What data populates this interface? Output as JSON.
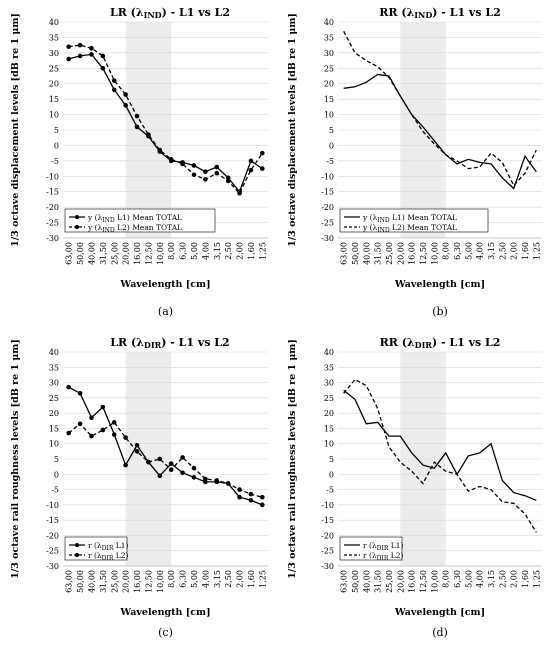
{
  "figure": {
    "captions": [
      "(a)",
      "(b)",
      "(c)",
      "(d)"
    ]
  },
  "chart_data": [
    {
      "type": "line",
      "title": {
        "pre": "LR (λ",
        "sub": "IND",
        "post": ") - L1 vs L2"
      },
      "xlabel": "Wavelength [cm]",
      "ylabel": "1/3 octave displacement levels [dB re 1 μm]",
      "categories": [
        "63,00",
        "50,00",
        "40,00",
        "31,50",
        "25,00",
        "20,00",
        "16,00",
        "12,50",
        "10,00",
        "8,00",
        "6,30",
        "5,00",
        "4,00",
        "3,15",
        "2,50",
        "2,00",
        "1,60",
        "1,25"
      ],
      "ylim": [
        -30,
        40
      ],
      "yticks": [
        40,
        35,
        30,
        25,
        20,
        15,
        10,
        5,
        0,
        -5,
        -10,
        -15,
        -20,
        -25,
        -30
      ],
      "shade": [
        "20,00",
        "8,00"
      ],
      "markers": true,
      "legend_position": "bottom-left",
      "series": [
        {
          "legend": {
            "pre": "y (λ",
            "sub": "IND",
            "post": " L1) Mean TOTAL"
          },
          "dash": false,
          "values": [
            28,
            29,
            29.5,
            25,
            18,
            13,
            6,
            3,
            -2,
            -5,
            -5.5,
            -6.5,
            -8.5,
            -7,
            -10.5,
            -15,
            -5,
            -7.5
          ]
        },
        {
          "legend": {
            "pre": "y (λ",
            "sub": "IND",
            "post": " L2) Mean TOTAL"
          },
          "dash": true,
          "values": [
            32,
            32.5,
            31.5,
            29,
            21,
            16.5,
            9.5,
            3.5,
            -1.5,
            -4.5,
            -6,
            -9.5,
            -11,
            -9,
            -11.5,
            -15.5,
            -8,
            -2.5
          ]
        }
      ]
    },
    {
      "type": "line",
      "title": {
        "pre": "RR (λ",
        "sub": "IND",
        "post": ") - L1 vs L2"
      },
      "xlabel": "Wavelength [cm]",
      "ylabel": "1/3 octave displacement levels [dB re 1 μm]",
      "categories": [
        "63,00",
        "50,00",
        "40,00",
        "31,50",
        "25,00",
        "20,00",
        "16,00",
        "12,50",
        "10,00",
        "8,00",
        "6,30",
        "5,00",
        "4,00",
        "3,15",
        "2,50",
        "2,00",
        "1,60",
        "1,25"
      ],
      "ylim": [
        -30,
        40
      ],
      "yticks": [
        40,
        35,
        30,
        25,
        20,
        15,
        10,
        5,
        0,
        -5,
        -10,
        -15,
        -20,
        -25,
        -30
      ],
      "shade": [
        "20,00",
        "8,00"
      ],
      "markers": false,
      "legend_position": "bottom-left",
      "series": [
        {
          "legend": {
            "pre": "y (λ",
            "sub": "IND",
            "post": " L1) Mean TOTAL"
          },
          "dash": false,
          "values": [
            18.5,
            19,
            20.5,
            23,
            22.5,
            16,
            10,
            6,
            1.5,
            -3,
            -6,
            -4.5,
            -5.5,
            -6,
            -10.5,
            -14,
            -3.5,
            -8.5
          ]
        },
        {
          "legend": {
            "pre": "y (λ",
            "sub": "IND",
            "post": " L2) Mean TOTAL"
          },
          "dash": true,
          "values": [
            37,
            30,
            27.5,
            25.5,
            22,
            16,
            10,
            4.5,
            0.5,
            -3,
            -5,
            -7.5,
            -7,
            -2.5,
            -5.5,
            -13,
            -9,
            -1.5
          ]
        }
      ]
    },
    {
      "type": "line",
      "title": {
        "pre": "LR (λ",
        "sub": "DIR",
        "post": ") - L1 vs L2"
      },
      "xlabel": "Wavelength [cm]",
      "ylabel": "1/3 octave rail roughness levels [dB re 1 μm]",
      "categories": [
        "63,00",
        "50,00",
        "40,00",
        "31,50",
        "25,00",
        "20,00",
        "16,00",
        "12,50",
        "10,00",
        "8,00",
        "6,30",
        "5,00",
        "4,00",
        "3,15",
        "2,50",
        "2,00",
        "1,60",
        "1,25"
      ],
      "ylim": [
        -30,
        40
      ],
      "yticks": [
        40,
        35,
        30,
        25,
        20,
        15,
        10,
        5,
        0,
        -5,
        -10,
        -15,
        -20,
        -25,
        -30
      ],
      "shade": [
        "20,00",
        "8,00"
      ],
      "markers": true,
      "legend_position": "bottom-left",
      "series": [
        {
          "legend": {
            "pre": "r (λ",
            "sub": "DIR",
            "post": " L1)"
          },
          "dash": false,
          "values": [
            28.5,
            26.5,
            18.5,
            22,
            13,
            3,
            9.5,
            4,
            -0.5,
            3.5,
            0.5,
            -1,
            -2.5,
            -2.5,
            -3,
            -7.5,
            -8.5,
            -10
          ]
        },
        {
          "legend": {
            "pre": "r (λ",
            "sub": "DIR",
            "post": " L2)"
          },
          "dash": true,
          "values": [
            13.5,
            16.5,
            12.5,
            14.5,
            17,
            12,
            7.5,
            4,
            5,
            1.5,
            5.5,
            2,
            -1.5,
            -2,
            -3,
            -5,
            -6.5,
            -7.5
          ]
        }
      ]
    },
    {
      "type": "line",
      "title": {
        "pre": "RR (λ",
        "sub": "DIR",
        "post": ") - L1 vs L2"
      },
      "xlabel": "Wavelength [cm]",
      "ylabel": "1/3 octave rail roughness levels [dB re 1 μm]",
      "categories": [
        "63,00",
        "50,00",
        "40,00",
        "31,50",
        "25,00",
        "20,00",
        "16,00",
        "12,50",
        "10,00",
        "8,00",
        "6,30",
        "5,00",
        "4,00",
        "3,15",
        "2,50",
        "2,00",
        "1,60",
        "1,25"
      ],
      "ylim": [
        -30,
        40
      ],
      "yticks": [
        40,
        35,
        30,
        25,
        20,
        15,
        10,
        5,
        0,
        -5,
        -10,
        -15,
        -20,
        -25,
        -30
      ],
      "shade": [
        "20,00",
        "8,00"
      ],
      "markers": false,
      "legend_position": "bottom-left",
      "series": [
        {
          "legend": {
            "pre": "r (λ",
            "sub": "DIR",
            "post": " L1)"
          },
          "dash": false,
          "values": [
            27.5,
            24.5,
            16.5,
            17,
            12.5,
            12.5,
            7,
            3,
            2,
            7,
            0,
            6,
            7,
            10,
            -2,
            -6,
            -7,
            -8.5
          ]
        },
        {
          "legend": {
            "pre": "r (λ",
            "sub": "DIR",
            "post": " L2)"
          },
          "dash": true,
          "values": [
            26.5,
            31,
            29,
            21.5,
            9,
            4,
            1,
            -3,
            4,
            1,
            0,
            -5.5,
            -4,
            -5,
            -9,
            -9.5,
            -13,
            -19
          ]
        }
      ]
    }
  ]
}
